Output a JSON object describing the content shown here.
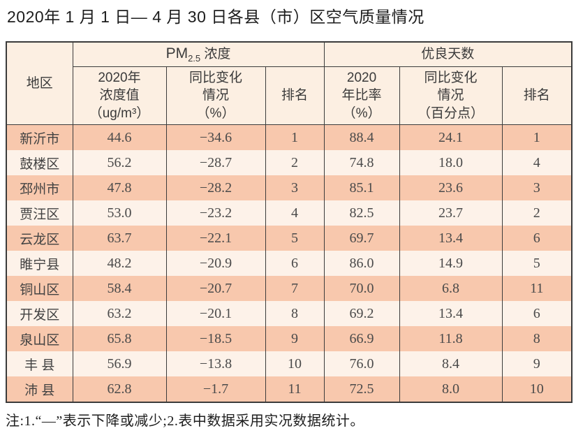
{
  "title": "2020年 1 月 1 日— 4 月 30 日各县（市）区空气质量情况",
  "note": "注:1.“—”表示下降或减少;2.表中数据采用实况数据统计。",
  "colors": {
    "row_odd": "#f8c8ad",
    "row_even": "#fdf2e9",
    "header_bg": "#fcefe2",
    "border": "#3b3b3b"
  },
  "table": {
    "region_header": "地区",
    "pm_group": {
      "prefix": "PM",
      "sub": "2.5",
      "suffix": " 浓度"
    },
    "good_group": "优良天数",
    "sub_headers": [
      "2020年\n浓度值\n（ug/m³）",
      "同比变化\n情况\n（%）",
      "排名",
      "2020\n年比率\n（%）",
      "同比变化\n情况\n（百分点）",
      "排名"
    ],
    "row_keys": [
      "region",
      "pm_value",
      "pm_change",
      "pm_rank",
      "good_rate",
      "good_change",
      "good_rank"
    ],
    "rows": [
      {
        "region": "新沂市",
        "pm_value": "44.6",
        "pm_change": "−34.6",
        "pm_rank": "1",
        "good_rate": "88.4",
        "good_change": "24.1",
        "good_rank": "1"
      },
      {
        "region": "鼓楼区",
        "pm_value": "56.2",
        "pm_change": "−28.7",
        "pm_rank": "2",
        "good_rate": "74.8",
        "good_change": "18.0",
        "good_rank": "4"
      },
      {
        "region": "邳州市",
        "pm_value": "47.8",
        "pm_change": "−28.2",
        "pm_rank": "3",
        "good_rate": "85.1",
        "good_change": "23.6",
        "good_rank": "3"
      },
      {
        "region": "贾汪区",
        "pm_value": "53.0",
        "pm_change": "−23.2",
        "pm_rank": "4",
        "good_rate": "82.5",
        "good_change": "23.7",
        "good_rank": "2"
      },
      {
        "region": "云龙区",
        "pm_value": "63.7",
        "pm_change": "−22.1",
        "pm_rank": "5",
        "good_rate": "69.7",
        "good_change": "13.4",
        "good_rank": "6"
      },
      {
        "region": "睢宁县",
        "pm_value": "48.2",
        "pm_change": "−20.9",
        "pm_rank": "6",
        "good_rate": "86.0",
        "good_change": "14.9",
        "good_rank": "5"
      },
      {
        "region": "铜山区",
        "pm_value": "58.4",
        "pm_change": "−20.7",
        "pm_rank": "7",
        "good_rate": "70.0",
        "good_change": "6.8",
        "good_rank": "11"
      },
      {
        "region": "开发区",
        "pm_value": "63.2",
        "pm_change": "−20.1",
        "pm_rank": "8",
        "good_rate": "69.2",
        "good_change": "13.4",
        "good_rank": "6"
      },
      {
        "region": "泉山区",
        "pm_value": "65.8",
        "pm_change": "−18.5",
        "pm_rank": "9",
        "good_rate": "66.9",
        "good_change": "11.8",
        "good_rank": "8"
      },
      {
        "region": "丰 县",
        "pm_value": "56.9",
        "pm_change": "−13.8",
        "pm_rank": "10",
        "good_rate": "76.0",
        "good_change": "8.4",
        "good_rank": "9"
      },
      {
        "region": "沛 县",
        "pm_value": "62.8",
        "pm_change": "−1.7",
        "pm_rank": "11",
        "good_rate": "72.5",
        "good_change": "8.0",
        "good_rank": "10"
      }
    ]
  }
}
